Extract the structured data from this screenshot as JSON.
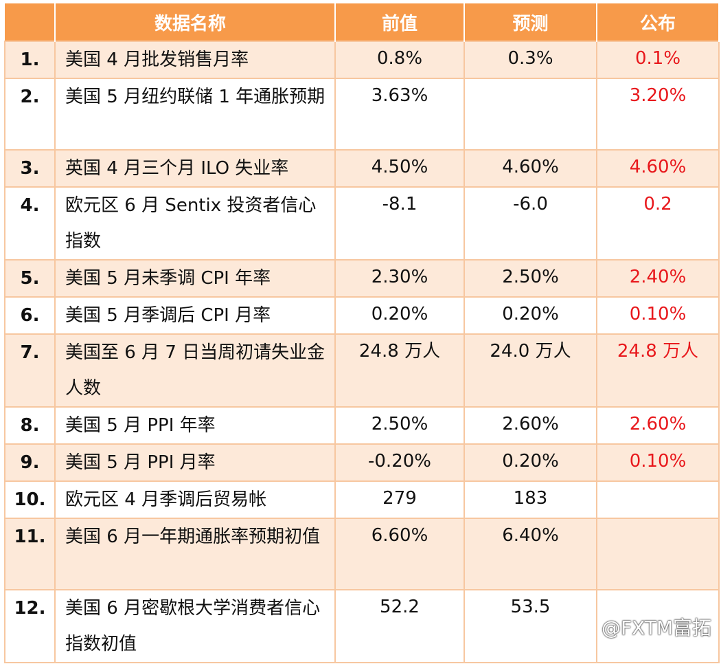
{
  "header": {
    "name": "数据名称",
    "previous": "前值",
    "forecast": "预测",
    "actual": "公布"
  },
  "rows": [
    {
      "num": "1.",
      "name": "美国 4 月批发销售月率",
      "previous": "0.8%",
      "forecast": "0.3%",
      "actual": "0.1%"
    },
    {
      "num": "2.",
      "name": "美国 5 月纽约联储 1 年通胀预期",
      "previous": "3.63%",
      "forecast": "",
      "actual": "3.20%"
    },
    {
      "num": "3.",
      "name": "英国 4 月三个月 ILO 失业率",
      "previous": "4.50%",
      "forecast": "4.60%",
      "actual": "4.60%"
    },
    {
      "num": "4.",
      "name": " 欧元区 6 月 Sentix 投资者信心指数",
      "previous": "-8.1",
      "forecast": "-6.0",
      "actual": "0.2"
    },
    {
      "num": "5.",
      "name": " 美国 5 月未季调 CPI 年率",
      "previous": "2.30%",
      "forecast": "2.50%",
      "actual": "2.40%"
    },
    {
      "num": "6.",
      "name": " 美国 5 月季调后 CPI 月率",
      "previous": "0.20%",
      "forecast": "0.20%",
      "actual": "0.10%"
    },
    {
      "num": "7.",
      "name": "美国至 6 月 7 日当周初请失业金人数",
      "previous": "24.8 万人",
      "forecast": "24.0 万人",
      "actual": "24.8 万人"
    },
    {
      "num": "8.",
      "name": "美国 5 月 PPI 年率",
      "previous": "2.50%",
      "forecast": "2.60%",
      "actual": "2.60%"
    },
    {
      "num": "9.",
      "name": "美国 5 月 PPI 月率",
      "previous": "-0.20%",
      "forecast": "0.20%",
      "actual": "0.10%"
    },
    {
      "num": "10.",
      "name": "欧元区 4 月季调后贸易帐",
      "previous": "279",
      "forecast": "183",
      "actual": ""
    },
    {
      "num": "11.",
      "name": "美国 6 月一年期通胀率预期初值",
      "previous": "6.60%",
      "forecast": "6.40%",
      "actual": ""
    },
    {
      "num": "12.",
      "name": "美国 6 月密歇根大学消费者信心指数初值",
      "previous": "52.2",
      "forecast": "53.5",
      "actual": ""
    }
  ],
  "watermark": "@FXTM富拓",
  "colors": {
    "header_bg": "#f79a4a",
    "row_alt_bg": "#fde9d9",
    "border": "#f7c7a0",
    "actual_text": "#e8181c"
  }
}
